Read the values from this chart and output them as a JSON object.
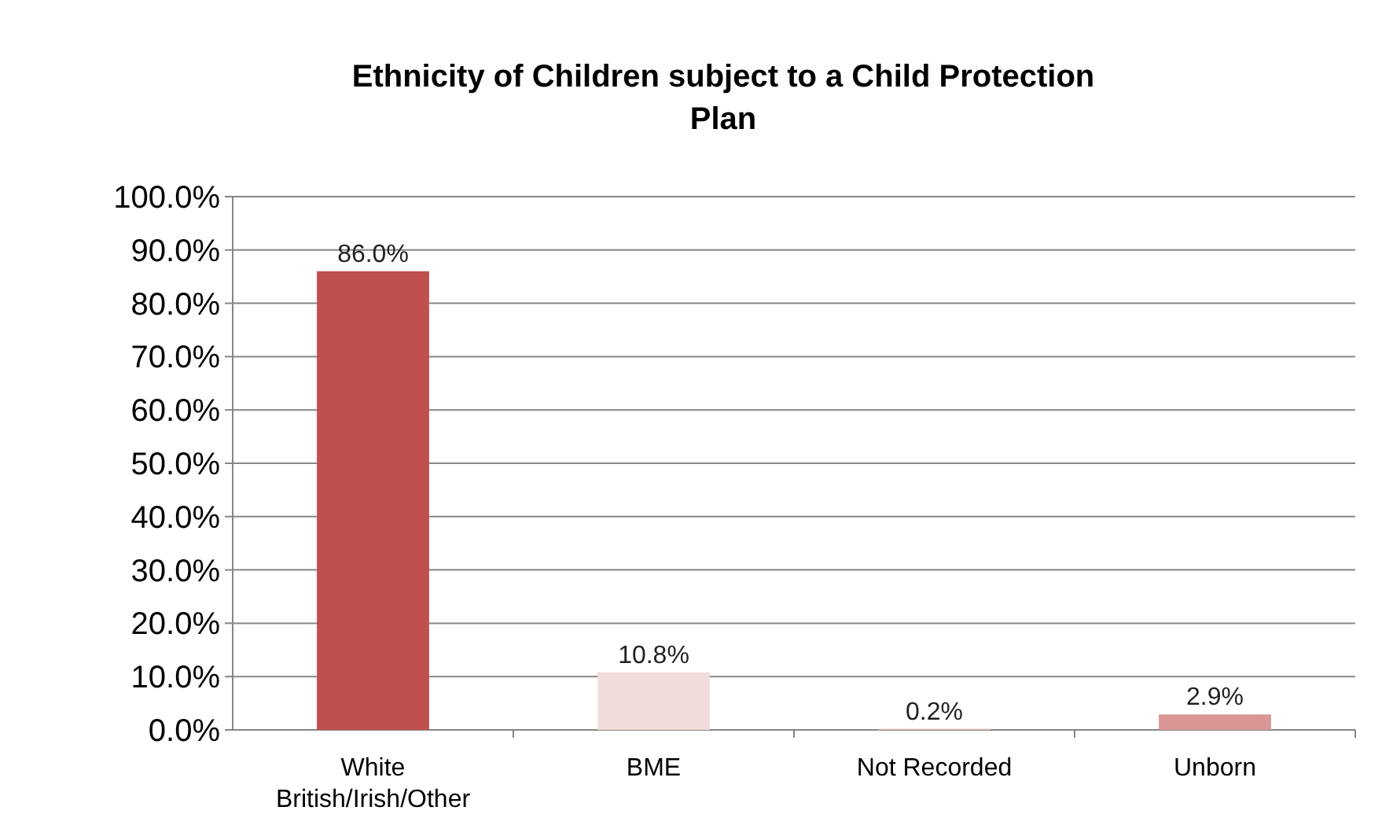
{
  "chart_data": {
    "type": "bar",
    "title": "Ethnicity of Children subject to a Child Protection Plan",
    "categories": [
      "White British/Irish/Other",
      "BME",
      "Not Recorded",
      "Unborn"
    ],
    "values": [
      86.0,
      10.8,
      0.2,
      2.9
    ],
    "value_labels": [
      "86.0%",
      "10.8%",
      "0.2%",
      "2.9%"
    ],
    "colors": [
      "#c0504d",
      "#f2dcdb",
      "#e6b9b8",
      "#d99694"
    ],
    "ylim": [
      0,
      100
    ],
    "yticks": [
      {
        "value": 0,
        "label": "0.0%"
      },
      {
        "value": 10,
        "label": "10.0%"
      },
      {
        "value": 20,
        "label": "20.0%"
      },
      {
        "value": 30,
        "label": "30.0%"
      },
      {
        "value": 40,
        "label": "40.0%"
      },
      {
        "value": 50,
        "label": "50.0%"
      },
      {
        "value": 60,
        "label": "60.0%"
      },
      {
        "value": 70,
        "label": "70.0%"
      },
      {
        "value": 80,
        "label": "80.0%"
      },
      {
        "value": 90,
        "label": "90.0%"
      },
      {
        "value": 100,
        "label": "100.0%"
      }
    ],
    "grid": "y"
  }
}
